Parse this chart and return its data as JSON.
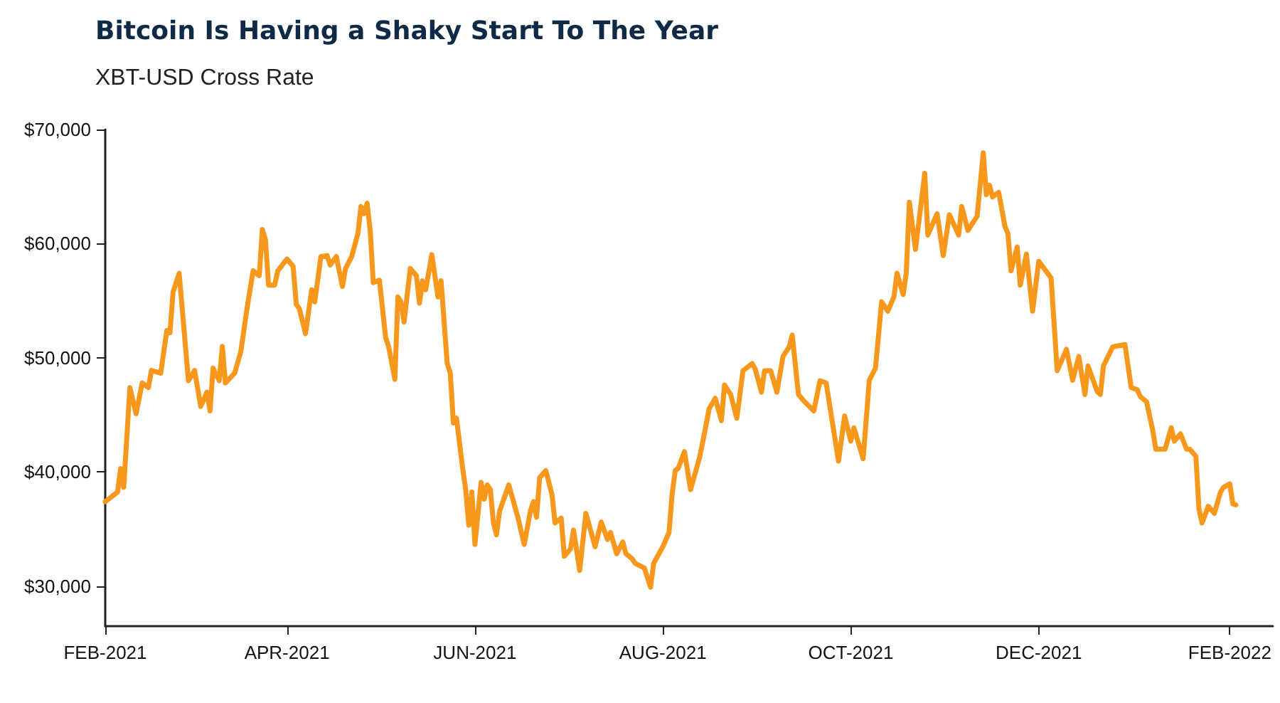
{
  "chart_data": {
    "type": "line",
    "title": "Bitcoin Is Having a Shaky Start To The Year",
    "subtitle": "XBT-USD Cross Rate",
    "x": [
      "2021-02-01",
      "2021-02-05",
      "2021-02-06",
      "2021-02-07",
      "2021-02-09",
      "2021-02-11",
      "2021-02-13",
      "2021-02-15",
      "2021-02-16",
      "2021-02-19",
      "2021-02-21",
      "2021-02-22",
      "2021-02-23",
      "2021-02-25",
      "2021-02-28",
      "2021-03-02",
      "2021-03-04",
      "2021-03-06",
      "2021-03-07",
      "2021-03-08",
      "2021-03-10",
      "2021-03-11",
      "2021-03-12",
      "2021-03-15",
      "2021-03-17",
      "2021-03-19",
      "2021-03-21",
      "2021-03-23",
      "2021-03-24",
      "2021-03-25",
      "2021-03-26",
      "2021-03-28",
      "2021-03-29",
      "2021-04-01",
      "2021-04-03",
      "2021-04-04",
      "2021-04-05",
      "2021-04-07",
      "2021-04-09",
      "2021-04-10",
      "2021-04-12",
      "2021-04-14",
      "2021-04-15",
      "2021-04-17",
      "2021-04-19",
      "2021-04-20",
      "2021-04-22",
      "2021-04-24",
      "2021-04-25",
      "2021-04-26",
      "2021-04-27",
      "2021-04-28",
      "2021-04-29",
      "2021-05-01",
      "2021-05-03",
      "2021-05-04",
      "2021-05-06",
      "2021-05-07",
      "2021-05-08",
      "2021-05-09",
      "2021-05-11",
      "2021-05-13",
      "2021-05-14",
      "2021-05-15",
      "2021-05-16",
      "2021-05-18",
      "2021-05-20",
      "2021-05-21",
      "2021-05-23",
      "2021-05-24",
      "2021-05-25",
      "2021-05-26",
      "2021-05-28",
      "2021-05-29",
      "2021-05-30",
      "2021-05-31",
      "2021-06-01",
      "2021-06-03",
      "2021-06-04",
      "2021-06-05",
      "2021-06-06",
      "2021-06-07",
      "2021-06-08",
      "2021-06-09",
      "2021-06-12",
      "2021-06-15",
      "2021-06-17",
      "2021-06-19",
      "2021-06-20",
      "2021-06-21",
      "2021-06-22",
      "2021-06-24",
      "2021-06-26",
      "2021-06-27",
      "2021-06-29",
      "2021-06-30",
      "2021-07-02",
      "2021-07-03",
      "2021-07-05",
      "2021-07-07",
      "2021-07-10",
      "2021-07-12",
      "2021-07-14",
      "2021-07-15",
      "2021-07-17",
      "2021-07-19",
      "2021-07-20",
      "2021-07-22",
      "2021-07-23",
      "2021-07-26",
      "2021-07-28",
      "2021-07-29",
      "2021-08-01",
      "2021-08-03",
      "2021-08-04",
      "2021-08-05",
      "2021-08-06",
      "2021-08-08",
      "2021-08-10",
      "2021-08-13",
      "2021-08-15",
      "2021-08-16",
      "2021-08-18",
      "2021-08-20",
      "2021-08-21",
      "2021-08-23",
      "2021-08-25",
      "2021-08-27",
      "2021-08-30",
      "2021-08-31",
      "2021-09-02",
      "2021-09-03",
      "2021-09-05",
      "2021-09-07",
      "2021-09-09",
      "2021-09-11",
      "2021-09-12",
      "2021-09-14",
      "2021-09-16",
      "2021-09-19",
      "2021-09-21",
      "2021-09-23",
      "2021-09-27",
      "2021-09-29",
      "2021-10-01",
      "2021-10-02",
      "2021-10-05",
      "2021-10-07",
      "2021-10-09",
      "2021-10-11",
      "2021-10-13",
      "2021-10-15",
      "2021-10-16",
      "2021-10-18",
      "2021-10-19",
      "2021-10-20",
      "2021-10-22",
      "2021-10-25",
      "2021-10-26",
      "2021-10-29",
      "2021-10-31",
      "2021-11-02",
      "2021-11-05",
      "2021-11-06",
      "2021-11-08",
      "2021-11-11",
      "2021-11-13",
      "2021-11-14",
      "2021-11-15",
      "2021-11-16",
      "2021-11-18",
      "2021-11-20",
      "2021-11-21",
      "2021-11-22",
      "2021-11-24",
      "2021-11-25",
      "2021-11-27",
      "2021-11-29",
      "2021-12-01",
      "2021-12-05",
      "2021-12-07",
      "2021-12-10",
      "2021-12-12",
      "2021-12-14",
      "2021-12-16",
      "2021-12-17",
      "2021-12-20",
      "2021-12-21",
      "2021-12-22",
      "2021-12-25",
      "2021-12-29",
      "2021-12-31",
      "2022-01-02",
      "2022-01-03",
      "2022-01-05",
      "2022-01-07",
      "2022-01-08",
      "2022-01-11",
      "2022-01-13",
      "2022-01-14",
      "2022-01-16",
      "2022-01-18",
      "2022-01-19",
      "2022-01-21",
      "2022-01-22",
      "2022-01-23",
      "2022-01-25",
      "2022-01-27",
      "2022-01-29",
      "2022-01-30",
      "2022-02-01",
      "2022-02-02",
      "2022-02-03"
    ],
    "series": [
      {
        "color": "#f7981d",
        "values": [
          37400,
          38250,
          40300,
          38660,
          47400,
          45100,
          47800,
          47400,
          48900,
          48660,
          52400,
          52200,
          55750,
          57400,
          48000,
          48900,
          45750,
          47000,
          45350,
          49100,
          48000,
          51000,
          47800,
          48660,
          50540,
          54300,
          57625,
          57200,
          61250,
          60340,
          56375,
          56375,
          57625,
          58660,
          58000,
          54700,
          54300,
          52125,
          55960,
          54900,
          58875,
          58960,
          58125,
          58875,
          56250,
          57830,
          58875,
          60875,
          63250,
          62625,
          63540,
          61160,
          56590,
          56800,
          51790,
          50960,
          48125,
          55340,
          54900,
          53125,
          57830,
          57200,
          54790,
          56750,
          55960,
          59040,
          55340,
          56750,
          49500,
          48660,
          44290,
          44710,
          40340,
          38460,
          35340,
          38250,
          33660,
          39090,
          37625,
          38875,
          38460,
          35540,
          34500,
          36590,
          38875,
          35960,
          33660,
          36590,
          37400,
          36040,
          39500,
          40125,
          38040,
          35540,
          35960,
          32625,
          33250,
          34910,
          31375,
          36375,
          33460,
          35625,
          34090,
          34710,
          32840,
          33875,
          32840,
          32410,
          32000,
          31590,
          29910,
          32000,
          33460,
          34710,
          38040,
          40125,
          40340,
          41790,
          38460,
          41375,
          44090,
          45540,
          46460,
          44500,
          47625,
          46790,
          44710,
          48875,
          49500,
          49000,
          47000,
          48875,
          48875,
          47000,
          50125,
          50960,
          52000,
          46790,
          46160,
          45350,
          48000,
          47800,
          40960,
          44910,
          42710,
          43875,
          41160,
          48040,
          49090,
          54910,
          54090,
          55340,
          57410,
          55540,
          57410,
          63625,
          59500,
          66160,
          60750,
          62625,
          58960,
          62540,
          60750,
          63250,
          61160,
          62410,
          67960,
          64290,
          65125,
          64090,
          64500,
          61540,
          60875,
          57625,
          59710,
          56375,
          59090,
          54090,
          58460,
          57000,
          48875,
          50750,
          48040,
          50125,
          46790,
          49290,
          47040,
          46790,
          49290,
          50960,
          51160,
          47410,
          47200,
          46590,
          46160,
          43660,
          42000,
          42000,
          43875,
          42710,
          43340,
          42000,
          42000,
          41375,
          36790,
          35540,
          37000,
          36375,
          38250,
          38660,
          38960,
          37210,
          37125
        ]
      }
    ],
    "xlim": [
      "2021-02-01",
      "2022-02-15"
    ],
    "xticks": [
      {
        "value": "2021-02-01",
        "label": "FEB-2021"
      },
      {
        "value": "2021-04-01",
        "label": "APR-2021"
      },
      {
        "value": "2021-06-01",
        "label": "JUN-2021"
      },
      {
        "value": "2021-08-01",
        "label": "AUG-2021"
      },
      {
        "value": "2021-10-01",
        "label": "OCT-2021"
      },
      {
        "value": "2021-12-01",
        "label": "DEC-2021"
      },
      {
        "value": "2022-02-01",
        "label": "FEB-2022"
      }
    ],
    "ylim": [
      26500,
      70000
    ],
    "yticks": [
      {
        "value": 30000,
        "label": "$30,000"
      },
      {
        "value": 40000,
        "label": "$40,000"
      },
      {
        "value": 50000,
        "label": "$50,000"
      },
      {
        "value": 60000,
        "label": "$60,000"
      },
      {
        "value": 70000,
        "label": "$70,000"
      }
    ],
    "marker": "none",
    "line_style": "solid"
  }
}
